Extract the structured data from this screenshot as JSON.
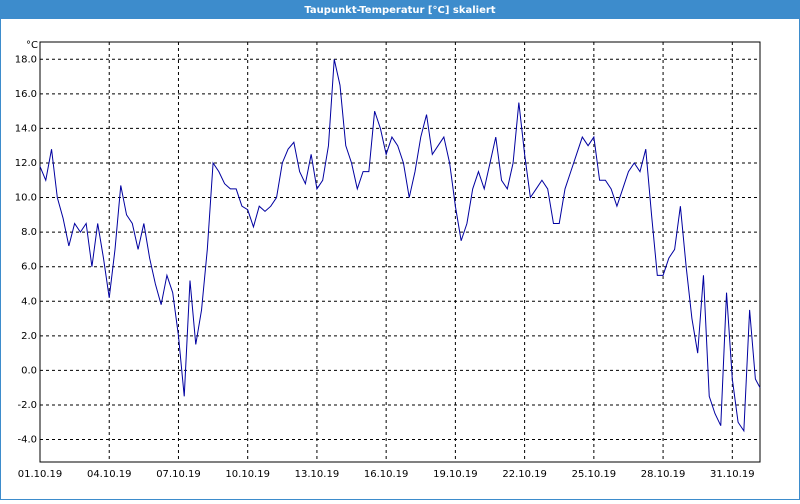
{
  "chart_data": {
    "type": "line",
    "title": "Taupunkt-Temperatur [°C] skaliert",
    "y_unit": "°C",
    "x": [
      0,
      0.25,
      0.5,
      0.75,
      1,
      1.25,
      1.5,
      1.75,
      2,
      2.25,
      2.5,
      2.75,
      3,
      3.25,
      3.5,
      3.75,
      4,
      4.25,
      4.5,
      4.75,
      5,
      5.25,
      5.5,
      5.75,
      6,
      6.25,
      6.5,
      6.75,
      7,
      7.25,
      7.5,
      7.75,
      8,
      8.25,
      8.5,
      8.75,
      9,
      9.25,
      9.5,
      9.75,
      10,
      10.25,
      10.5,
      10.75,
      11,
      11.25,
      11.5,
      11.75,
      12,
      12.25,
      12.5,
      12.75,
      13,
      13.25,
      13.5,
      13.75,
      14,
      14.25,
      14.5,
      14.75,
      15,
      15.25,
      15.5,
      15.75,
      16,
      16.25,
      16.5,
      16.75,
      17,
      17.25,
      17.5,
      17.75,
      18,
      18.25,
      18.5,
      18.75,
      19,
      19.25,
      19.5,
      19.75,
      20,
      20.25,
      20.5,
      20.75,
      21,
      21.25,
      21.5,
      21.75,
      22,
      22.25,
      22.5,
      22.75,
      23,
      23.25,
      23.5,
      23.75,
      24,
      24.25,
      24.5,
      24.75,
      25,
      25.25,
      25.5,
      25.75,
      26,
      26.25,
      26.5,
      26.75,
      27,
      27.25,
      27.5,
      27.75,
      28,
      28.25,
      28.5,
      28.75,
      29,
      29.25,
      29.5,
      29.75,
      30,
      30.25,
      30.5,
      30.75,
      31,
      31.2
    ],
    "series": [
      {
        "name": "Taupunkt",
        "color": "#0000a0",
        "values": [
          11.8,
          11.0,
          12.8,
          10.0,
          8.8,
          7.2,
          8.5,
          8.0,
          8.5,
          6.0,
          8.5,
          6.5,
          4.2,
          7.0,
          10.7,
          9.0,
          8.5,
          7.0,
          8.5,
          6.5,
          5.0,
          3.8,
          5.5,
          4.5,
          2.0,
          -1.5,
          5.2,
          1.5,
          3.5,
          7.0,
          12.0,
          11.5,
          10.8,
          10.5,
          10.5,
          9.5,
          9.3,
          8.3,
          9.5,
          9.2,
          9.5,
          10.0,
          12.0,
          12.8,
          13.2,
          11.5,
          10.8,
          12.5,
          10.5,
          11.0,
          13.0,
          18.0,
          16.5,
          13.0,
          12.0,
          10.5,
          11.5,
          11.5,
          15.0,
          14.0,
          12.5,
          13.5,
          13.0,
          12.0,
          10.0,
          11.5,
          13.5,
          14.8,
          12.5,
          13.0,
          13.5,
          12.0,
          9.5,
          7.5,
          8.5,
          10.5,
          11.5,
          10.5,
          12.0,
          13.5,
          11.0,
          10.5,
          12.0,
          15.5,
          12.5,
          10.0,
          10.5,
          11.0,
          10.5,
          8.5,
          8.5,
          10.5,
          11.5,
          12.5,
          13.5,
          13.0,
          13.5,
          11.0,
          11.0,
          10.5,
          9.5,
          10.5,
          11.5,
          12.0,
          11.5,
          12.8,
          9.0,
          5.5,
          5.5,
          6.5,
          7.0,
          9.5,
          6.0,
          3.0,
          1.0,
          5.5,
          -1.5,
          -2.5,
          -3.2,
          4.5,
          -0.5,
          -3.0,
          -3.5,
          3.5,
          -0.5,
          -1.0
        ]
      }
    ],
    "xlim": [
      0,
      31.2
    ],
    "ylim": [
      -5.3,
      19.0
    ],
    "xticks": [
      {
        "value": 0,
        "label": "01.10.19"
      },
      {
        "value": 3,
        "label": "04.10.19"
      },
      {
        "value": 6,
        "label": "07.10.19"
      },
      {
        "value": 9,
        "label": "10.10.19"
      },
      {
        "value": 12,
        "label": "13.10.19"
      },
      {
        "value": 15,
        "label": "16.10.19"
      },
      {
        "value": 18,
        "label": "19.10.19"
      },
      {
        "value": 21,
        "label": "22.10.19"
      },
      {
        "value": 24,
        "label": "25.10.19"
      },
      {
        "value": 27,
        "label": "28.10.19"
      },
      {
        "value": 30,
        "label": "31.10.19"
      }
    ],
    "yticks": [
      {
        "value": 18,
        "label": "18.0"
      },
      {
        "value": 16,
        "label": "16.0"
      },
      {
        "value": 14,
        "label": "14.0"
      },
      {
        "value": 12,
        "label": "12.0"
      },
      {
        "value": 10,
        "label": "10.0"
      },
      {
        "value": 8,
        "label": "8.0"
      },
      {
        "value": 6,
        "label": "6.0"
      },
      {
        "value": 4,
        "label": "4.0"
      },
      {
        "value": 2,
        "label": "2.0"
      },
      {
        "value": 0,
        "label": "0.0"
      },
      {
        "value": -2,
        "label": "-2.0"
      },
      {
        "value": -4,
        "label": "-4.0"
      }
    ],
    "grid": true
  }
}
